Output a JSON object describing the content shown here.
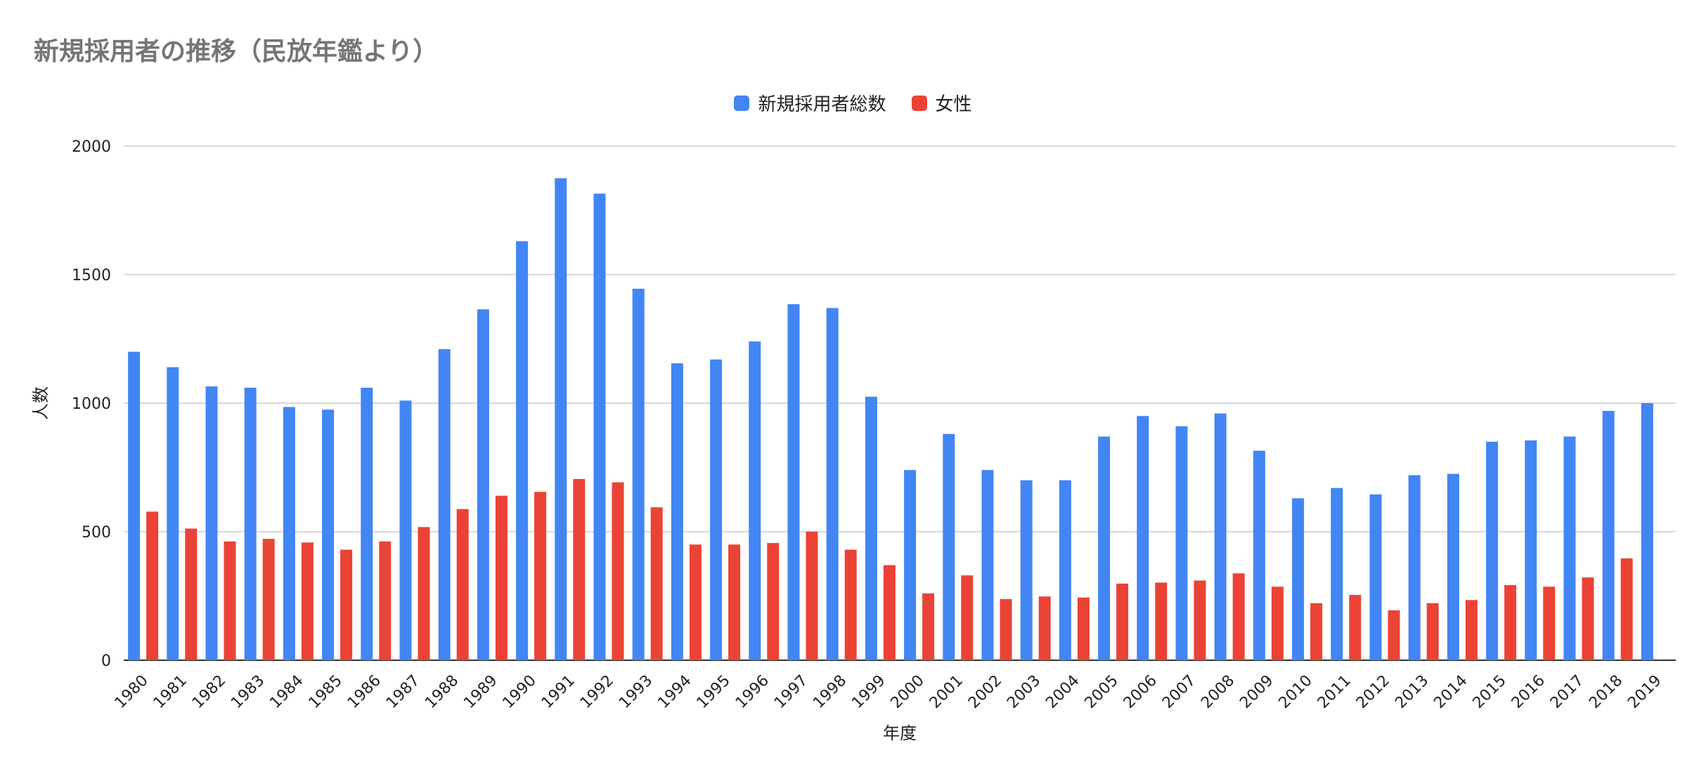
{
  "chart_data": {
    "type": "bar",
    "title": "新規採用者の推移（民放年鑑より）",
    "xlabel": "年度",
    "ylabel": "人数",
    "ylim": [
      0,
      2000
    ],
    "yticks": [
      0,
      500,
      1000,
      1500,
      2000
    ],
    "grid": true,
    "legend_position": "top-center",
    "categories": [
      "1980",
      "1981",
      "1982",
      "1983",
      "1984",
      "1985",
      "1986",
      "1987",
      "1988",
      "1989",
      "1990",
      "1991",
      "1992",
      "1993",
      "1994",
      "1995",
      "1996",
      "1997",
      "1998",
      "1999",
      "2000",
      "2001",
      "2002",
      "2003",
      "2004",
      "2005",
      "2006",
      "2007",
      "2008",
      "2009",
      "2010",
      "2011",
      "2012",
      "2013",
      "2014",
      "2015",
      "2016",
      "2017",
      "2018",
      "2019"
    ],
    "series": [
      {
        "name": "新規採用者総数",
        "color": "#4285F4",
        "values": [
          1200,
          1140,
          1065,
          1060,
          985,
          975,
          1060,
          1010,
          1210,
          1365,
          1630,
          1875,
          1815,
          1445,
          1155,
          1170,
          1240,
          1385,
          1370,
          1025,
          740,
          880,
          740,
          700,
          700,
          870,
          950,
          910,
          960,
          815,
          630,
          670,
          645,
          720,
          725,
          850,
          855,
          870,
          970,
          1000
        ]
      },
      {
        "name": "女性",
        "color": "#EA4335",
        "values": [
          578,
          512,
          462,
          472,
          458,
          430,
          462,
          518,
          588,
          640,
          655,
          705,
          692,
          595,
          450,
          450,
          456,
          500,
          430,
          370,
          260,
          330,
          238,
          248,
          244,
          298,
          302,
          310,
          338,
          286,
          222,
          254,
          194,
          222,
          234,
          292,
          286,
          322,
          396,
          null
        ]
      }
    ]
  }
}
